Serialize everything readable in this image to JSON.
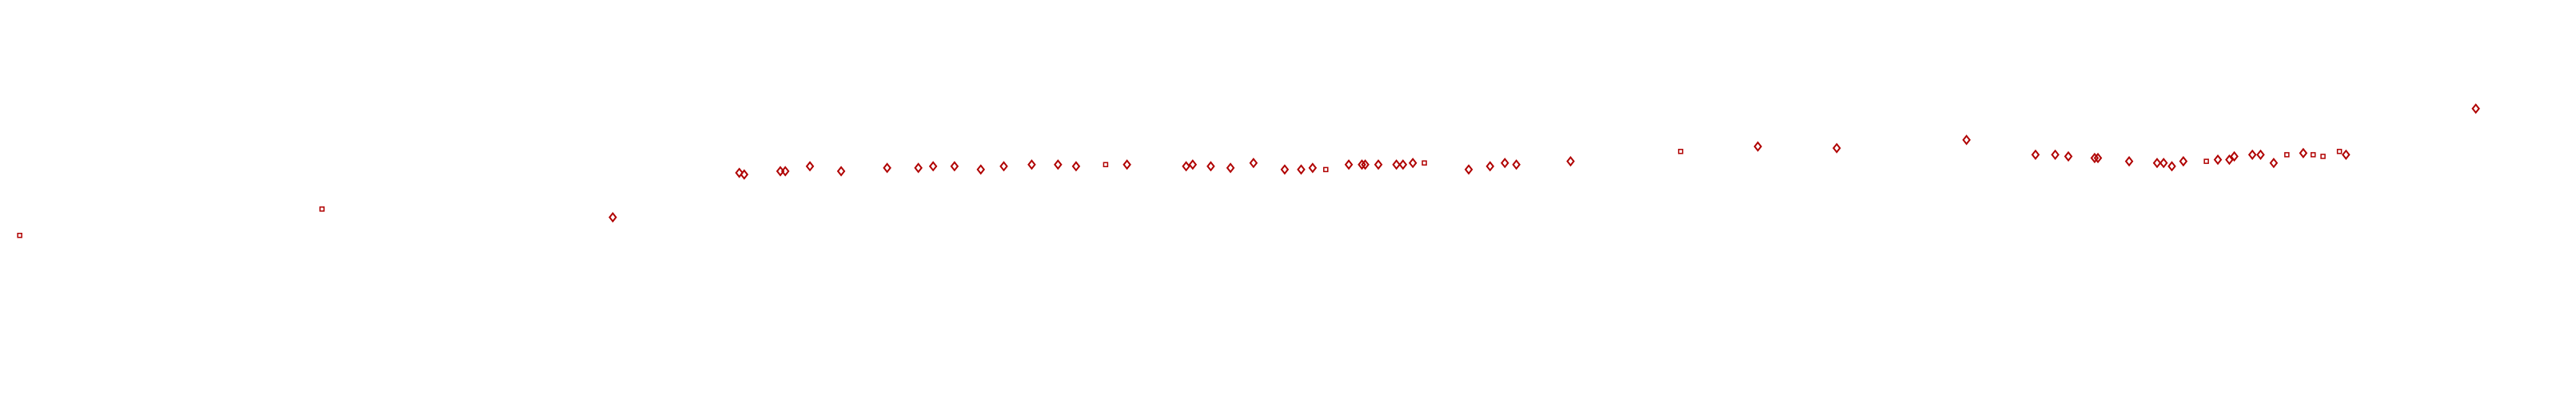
{
  "chart_data": {
    "type": "scatter",
    "title": "",
    "xlabel": "",
    "ylabel": "",
    "xlim": [
      0,
      1568
    ],
    "ylim": [
      0,
      243
    ],
    "grid": false,
    "axes_visible": false,
    "marker_color": "#b00000",
    "series": [
      {
        "marker": "square",
        "points": [
          [
            12,
            100
          ],
          [
            196,
            116
          ],
          [
            673,
            143
          ],
          [
            807,
            140
          ],
          [
            867,
            144
          ],
          [
            1023,
            151
          ],
          [
            1343,
            145
          ],
          [
            1392,
            149
          ],
          [
            1408,
            149
          ],
          [
            1414,
            148
          ],
          [
            1424,
            151
          ]
        ]
      },
      {
        "marker": "diamond",
        "points": [
          [
            373,
            111
          ],
          [
            450,
            138
          ],
          [
            453,
            137
          ],
          [
            475,
            139
          ],
          [
            478,
            139
          ],
          [
            493,
            142
          ],
          [
            512,
            139
          ],
          [
            540,
            141
          ],
          [
            559,
            141
          ],
          [
            568,
            142
          ],
          [
            581,
            142
          ],
          [
            597,
            140
          ],
          [
            611,
            142
          ],
          [
            628,
            143
          ],
          [
            644,
            143
          ],
          [
            655,
            142
          ],
          [
            686,
            143
          ],
          [
            722,
            142
          ],
          [
            726,
            143
          ],
          [
            737,
            142
          ],
          [
            749,
            141
          ],
          [
            763,
            144
          ],
          [
            782,
            140
          ],
          [
            792,
            140
          ],
          [
            799,
            141
          ],
          [
            821,
            143
          ],
          [
            829,
            143
          ],
          [
            831,
            143
          ],
          [
            839,
            143
          ],
          [
            850,
            143
          ],
          [
            854,
            143
          ],
          [
            860,
            144
          ],
          [
            894,
            140
          ],
          [
            907,
            142
          ],
          [
            916,
            144
          ],
          [
            923,
            143
          ],
          [
            956,
            145
          ],
          [
            1070,
            154
          ],
          [
            1118,
            153
          ],
          [
            1197,
            158
          ],
          [
            1239,
            149
          ],
          [
            1251,
            149
          ],
          [
            1259,
            148
          ],
          [
            1275,
            147
          ],
          [
            1277,
            147
          ],
          [
            1296,
            145
          ],
          [
            1313,
            144
          ],
          [
            1317,
            144
          ],
          [
            1322,
            142
          ],
          [
            1329,
            145
          ],
          [
            1350,
            146
          ],
          [
            1357,
            146
          ],
          [
            1360,
            148
          ],
          [
            1371,
            149
          ],
          [
            1376,
            149
          ],
          [
            1384,
            144
          ],
          [
            1402,
            150
          ],
          [
            1428,
            149
          ],
          [
            1507,
            177
          ]
        ]
      }
    ]
  }
}
